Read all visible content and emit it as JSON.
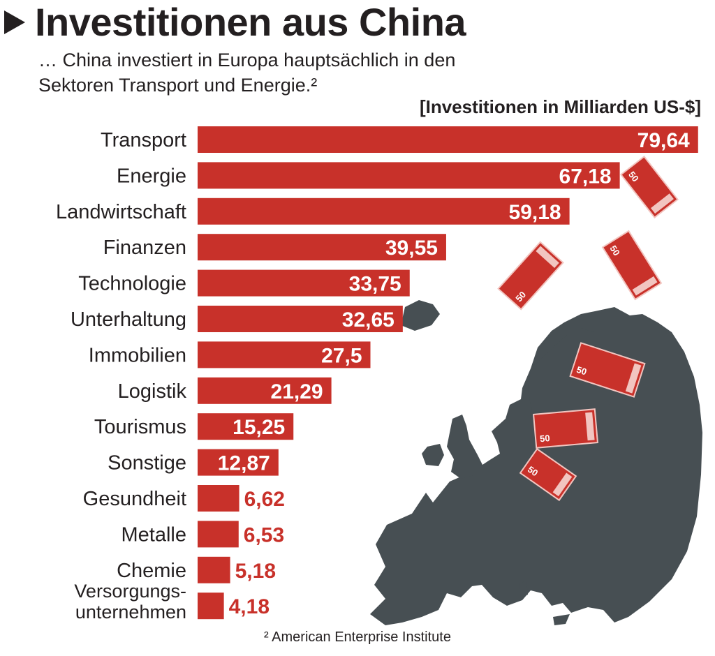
{
  "header": {
    "title": "Investitionen aus China",
    "subtitle_line1": "… China investiert in Europa hauptsächlich in den",
    "subtitle_line2": "Sektoren Transport und Energie.²",
    "unit_label": "[Investitionen in Milliarden US-$]"
  },
  "footer": {
    "source": "² American Enterprise Institute"
  },
  "colors": {
    "bar": "#c8312a",
    "map": "#474f53",
    "text": "#231f20",
    "bill_fill": "#c8312a",
    "bill_light": "#f2c5c0"
  },
  "decoration": {
    "bill_value": "50"
  },
  "chart_data": {
    "type": "bar",
    "orientation": "horizontal",
    "title": "Investitionen aus China",
    "xlabel": "Investitionen in Milliarden US-$",
    "ylabel": "",
    "xlim": [
      0,
      80
    ],
    "categories": [
      "Transport",
      "Energie",
      "Landwirtschaft",
      "Finanzen",
      "Technologie",
      "Unterhaltung",
      "Immobilien",
      "Logistik",
      "Tourismus",
      "Sonstige",
      "Gesundheit",
      "Metalle",
      "Chemie",
      [
        "Versorgungs-",
        "unternehmen"
      ]
    ],
    "values": [
      79.64,
      67.18,
      59.18,
      39.55,
      33.75,
      32.65,
      27.5,
      21.29,
      15.25,
      12.87,
      6.62,
      6.53,
      5.18,
      4.18
    ],
    "value_labels": [
      "79,64",
      "67,18",
      "59,18",
      "39,55",
      "33,75",
      "32,65",
      "27,5",
      "21,29",
      "15,25",
      "12,87",
      "6,62",
      "6,53",
      "5,18",
      "4,18"
    ]
  }
}
